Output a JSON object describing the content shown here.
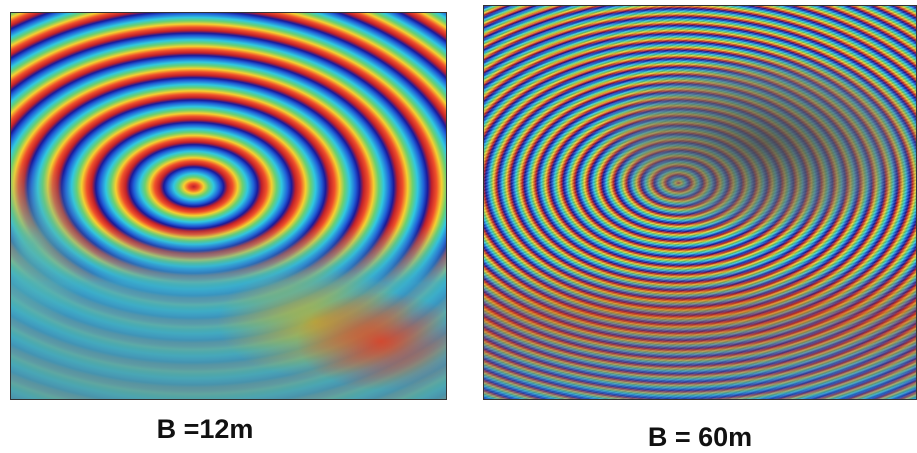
{
  "panels": [
    {
      "caption": "B =12m"
    },
    {
      "caption": "B = 60m"
    }
  ]
}
